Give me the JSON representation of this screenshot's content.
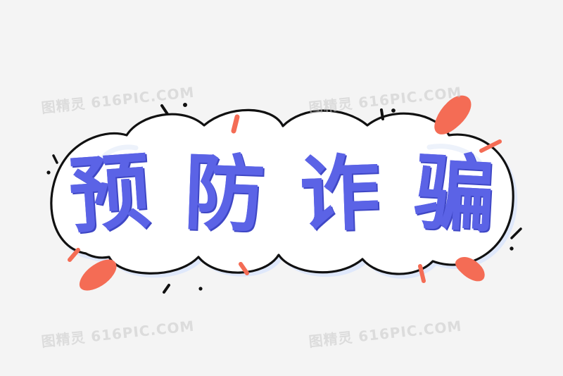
{
  "headline": {
    "chars": [
      "预",
      "防",
      "诈",
      "骗"
    ],
    "last_char": "骗",
    "full_text": "预防诈骗"
  },
  "watermark": {
    "text": "图精灵 616PIC.COM"
  },
  "colors": {
    "background": "#f4f4f4",
    "bubble_fill": "#ffffff",
    "outline": "#111111",
    "text": "#5b63e6",
    "accent": "#f46c55",
    "shadow": "#dbe4f7"
  },
  "decor": {
    "bubble": "cloud-speech-bubble",
    "accents": "orange-burst-marks",
    "dots": "black-ink-dots"
  }
}
